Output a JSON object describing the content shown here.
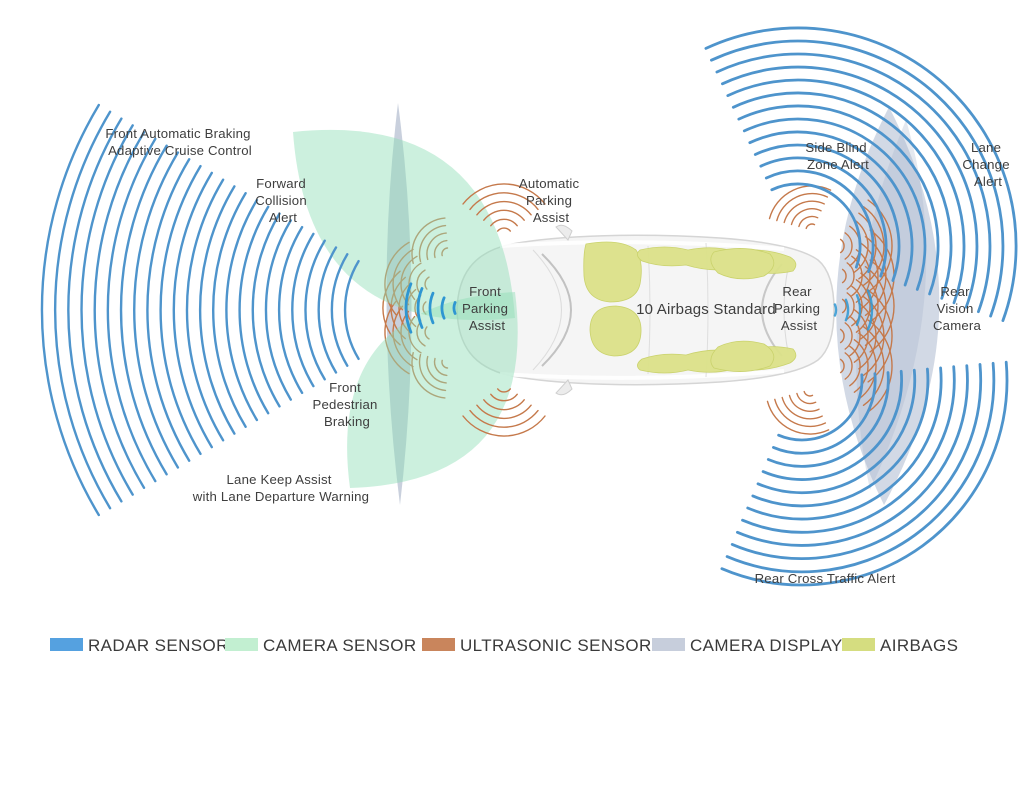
{
  "diagram_title": "Vehicle sensor coverage diagram",
  "labels": {
    "front_auto": [
      "Front Automatic Braking",
      "Adaptive Cruise Control"
    ],
    "forward_collision": [
      "Forward",
      "Collision",
      "Alert"
    ],
    "auto_parking": [
      "Automatic",
      "Parking",
      "Assist"
    ],
    "side_blind": [
      "Side Blind",
      "Zone Alert"
    ],
    "lane_change": [
      "Lane",
      "Change",
      "Alert"
    ],
    "front_parking": [
      "Front",
      "Parking",
      "Assist"
    ],
    "airbags_standard": [
      "10 Airbags Standard"
    ],
    "rear_parking": [
      "Rear",
      "Parking",
      "Assist"
    ],
    "rear_vision": [
      "Rear",
      "Vision",
      "Camera"
    ],
    "front_pedestrian": [
      "Front",
      "Pedestrian",
      "Braking"
    ],
    "lane_keep": [
      "Lane Keep Assist",
      "with Lane Departure Warning"
    ],
    "rear_cross": [
      "Rear Cross Traffic Alert"
    ]
  },
  "legend": {
    "items": [
      {
        "label": "RADAR SENSOR",
        "color": "#55A1E0"
      },
      {
        "label": "CAMERA SENSOR",
        "color": "#C2EFD1"
      },
      {
        "label": "ULTRASONIC SENSOR",
        "color": "#C9855C"
      },
      {
        "label": "CAMERA DISPLAY",
        "color": "#C7CEDC"
      },
      {
        "label": "AIRBAGS",
        "color": "#D5DD80"
      }
    ]
  },
  "colors": {
    "radar": "#4E94CC",
    "radar_bright": "#2E96D2",
    "ultrasonic": "#C5794B",
    "camera_sensor": "#8FDDB5",
    "camera_display": "#98A7C0",
    "airbags": "#DCE289",
    "airbags_stroke": "#C8D166",
    "label_text": "#3e3e3e",
    "car_body": "#F5F5F5",
    "car_outline": "#D5D5D5"
  }
}
